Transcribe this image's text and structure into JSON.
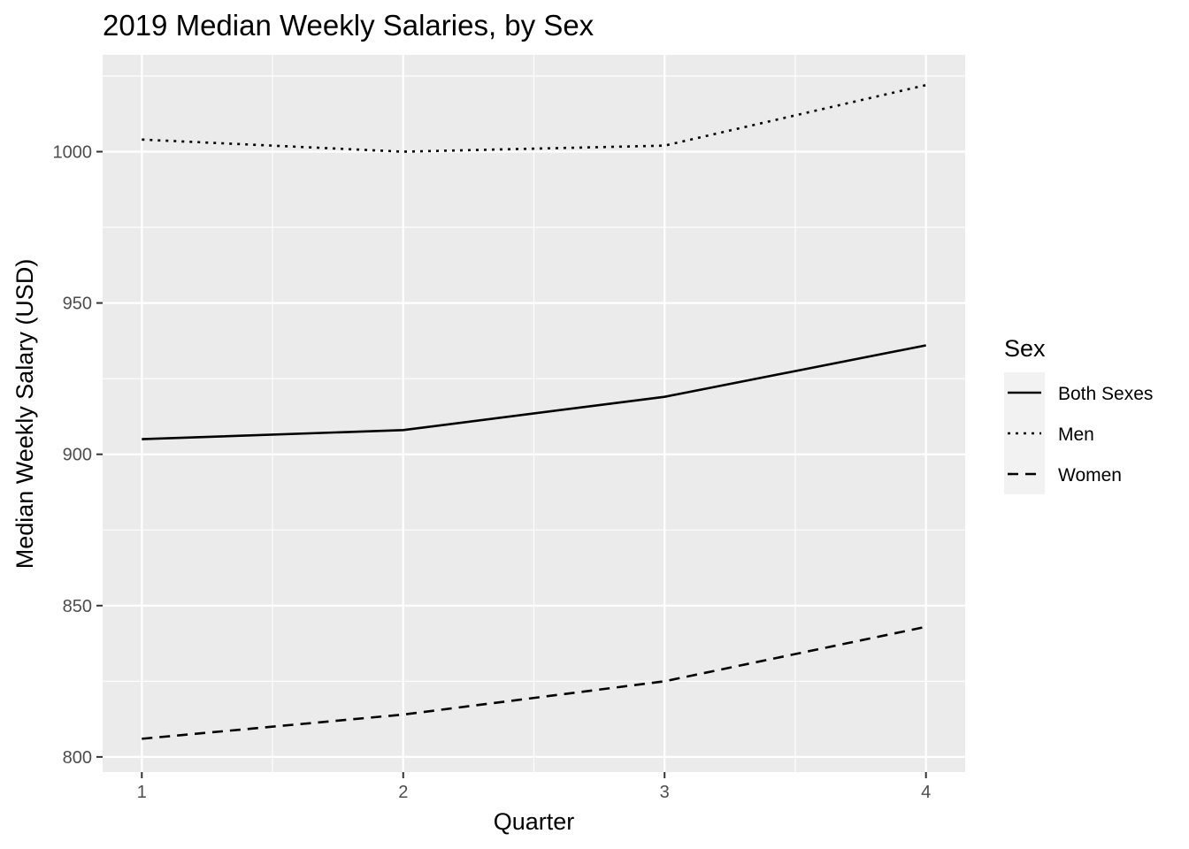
{
  "chart_data": {
    "type": "line",
    "title": "2019 Median Weekly Salaries, by Sex",
    "xlabel": "Quarter",
    "ylabel": "Median Weekly Salary (USD)",
    "x": [
      1,
      2,
      3,
      4
    ],
    "x_ticks": [
      "1",
      "2",
      "3",
      "4"
    ],
    "y_ticks": [
      "800",
      "850",
      "900",
      "950",
      "1000"
    ],
    "xlim": [
      0.85,
      4.15
    ],
    "ylim": [
      795,
      1032
    ],
    "grid": true,
    "legend": {
      "title": "Sex",
      "placement": "right"
    },
    "series": [
      {
        "name": "Both Sexes",
        "linetype": "solid",
        "values": [
          905,
          908,
          919,
          936
        ]
      },
      {
        "name": "Men",
        "linetype": "dotted",
        "values": [
          1004,
          1000,
          1002,
          1022
        ]
      },
      {
        "name": "Women",
        "linetype": "dashed",
        "values": [
          806,
          814,
          825,
          843
        ]
      }
    ],
    "colors": {
      "panel": "#ebebeb",
      "grid": "#ffffff",
      "line": "#000000",
      "legend_key": "#f2f2f2"
    }
  }
}
